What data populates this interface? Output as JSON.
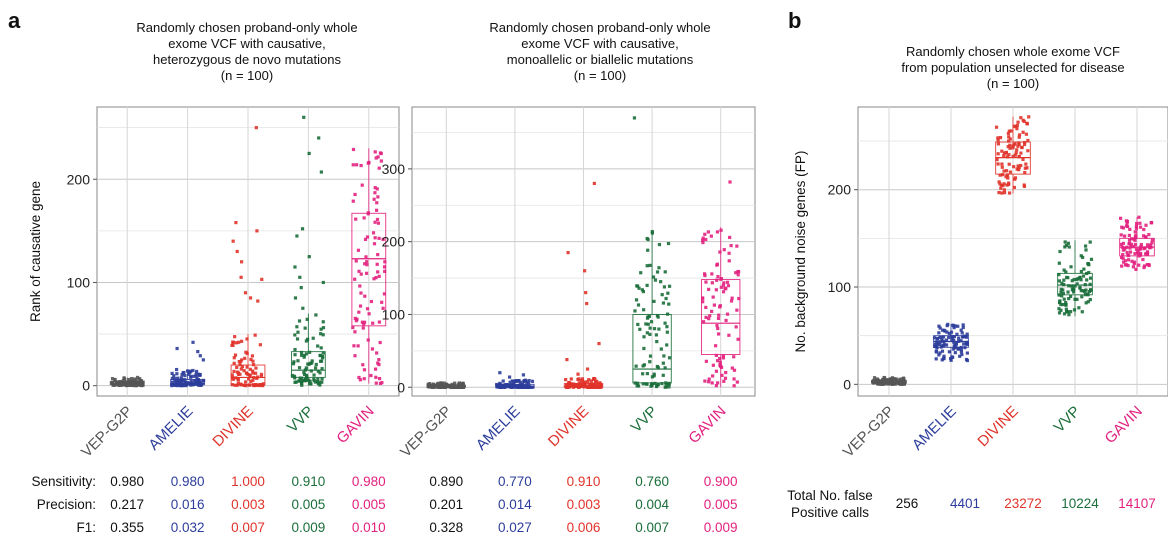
{
  "colors": {
    "VEP-G2P": "#555555",
    "AMELIE": "#2c3d9b",
    "DIVINE": "#e0332a",
    "VVP": "#1a6e3a",
    "GAVIN": "#e2217f"
  },
  "panel_letters": {
    "a": "a",
    "b": "b"
  },
  "titles": {
    "p1": [
      "Randomly chosen proband-only whole",
      "exome VCF with causative,",
      "heterozygous de novo mutations",
      "(n = 100)"
    ],
    "p2": [
      "Randomly chosen proband-only whole",
      "exome VCF with causative,",
      "monoallelic or biallelic mutations",
      "(n = 100)"
    ],
    "p3": [
      "Randomly chosen whole exome VCF",
      "from population unselected for disease",
      "(n = 100)"
    ]
  },
  "metrics": {
    "labels": [
      "Sensitivity:",
      "Precision:",
      "F1:"
    ],
    "p1": {
      "Sensitivity": [
        "0.980",
        "0.980",
        "1.000",
        "0.910",
        "0.980"
      ],
      "Precision": [
        "0.217",
        "0.016",
        "0.003",
        "0.005",
        "0.005"
      ],
      "F1": [
        "0.355",
        "0.032",
        "0.007",
        "0.009",
        "0.010"
      ]
    },
    "p2": {
      "Sensitivity": [
        "0.890",
        "0.770",
        "0.910",
        "0.760",
        "0.900"
      ],
      "Precision": [
        "0.201",
        "0.014",
        "0.003",
        "0.004",
        "0.005"
      ],
      "F1": [
        "0.328",
        "0.027",
        "0.006",
        "0.007",
        "0.009"
      ]
    }
  },
  "fp": {
    "label": [
      "Total No. false",
      "Positive calls"
    ],
    "values": [
      "256",
      "4401",
      "23272",
      "10224",
      "14107"
    ]
  },
  "chart_data": [
    {
      "type": "box",
      "title": "Randomly chosen proband-only whole exome VCF with causative, heterozygous de novo mutations (n = 100)",
      "ylabel": "Rank of causative gene",
      "ylim": [
        -10,
        270
      ],
      "yticks": [
        0,
        100,
        200
      ],
      "categories": [
        "VEP-G2P",
        "AMELIE",
        "DIVINE",
        "VVP",
        "GAVIN"
      ],
      "boxes": [
        {
          "q1": 1,
          "median": 2,
          "q3": 4,
          "low": 0,
          "high": 8
        },
        {
          "q1": 1,
          "median": 2,
          "q3": 6,
          "low": 0,
          "high": 16
        },
        {
          "q1": 1,
          "median": 8,
          "q3": 20,
          "low": 0,
          "high": 50
        },
        {
          "q1": 8,
          "median": 15,
          "q3": 33,
          "low": 0,
          "high": 70
        },
        {
          "q1": 58,
          "median": 123,
          "q3": 167,
          "low": 2,
          "high": 230
        }
      ],
      "outliers": [
        [],
        [
          25,
          29,
          33,
          36,
          42
        ],
        [
          82,
          85,
          90,
          103,
          105,
          120,
          130,
          140,
          150,
          158,
          250
        ],
        [
          75,
          85,
          95,
          100,
          105,
          115,
          125,
          145,
          152,
          207,
          225,
          240,
          260
        ],
        []
      ]
    },
    {
      "type": "box",
      "title": "Randomly chosen proband-only whole exome VCF with causative, monoallelic or biallelic mutations (n = 100)",
      "ylim": [
        -12,
        385
      ],
      "yticks": [
        0,
        100,
        200,
        300
      ],
      "categories": [
        "VEP-G2P",
        "AMELIE",
        "DIVINE",
        "VVP",
        "GAVIN"
      ],
      "boxes": [
        {
          "q1": 0,
          "median": 1,
          "q3": 3,
          "low": 0,
          "high": 6
        },
        {
          "q1": 0,
          "median": 1,
          "q3": 4,
          "low": 0,
          "high": 10
        },
        {
          "q1": 0,
          "median": 1,
          "q3": 5,
          "low": 0,
          "high": 12
        },
        {
          "q1": 6,
          "median": 25,
          "q3": 100,
          "low": 0,
          "high": 215
        },
        {
          "q1": 45,
          "median": 88,
          "q3": 148,
          "low": 0,
          "high": 220
        }
      ],
      "outliers": [
        [],
        [
          14,
          17,
          20
        ],
        [
          18,
          25,
          38,
          60,
          115,
          130,
          160,
          185,
          280
        ],
        [
          370
        ],
        [
          282
        ]
      ]
    },
    {
      "type": "box",
      "title": "Randomly chosen whole exome VCF from population unselected for disease (n = 100)",
      "ylabel": "No. background noise genes (FP)",
      "ylim": [
        -12,
        285
      ],
      "yticks": [
        0,
        100,
        200
      ],
      "categories": [
        "VEP-G2P",
        "AMELIE",
        "DIVINE",
        "VVP",
        "GAVIN"
      ],
      "boxes": [
        {
          "q1": 1,
          "median": 2,
          "q3": 4,
          "low": 0,
          "high": 7
        },
        {
          "q1": 38,
          "median": 44,
          "q3": 50,
          "low": 24,
          "high": 62
        },
        {
          "q1": 216,
          "median": 233,
          "q3": 249,
          "low": 196,
          "high": 275
        },
        {
          "q1": 92,
          "median": 102,
          "q3": 114,
          "low": 70,
          "high": 148
        },
        {
          "q1": 132,
          "median": 141,
          "q3": 150,
          "low": 118,
          "high": 172
        }
      ],
      "outliers": [
        [],
        [],
        [],
        [],
        []
      ]
    }
  ]
}
